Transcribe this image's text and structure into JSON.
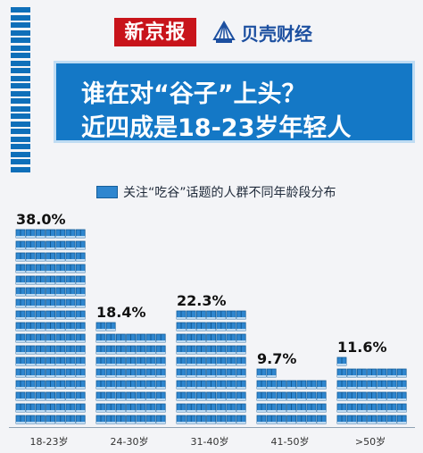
{
  "header": {
    "logo_xjb": "新京报",
    "logo_beike": "贝壳财经"
  },
  "title": {
    "line1": "谁在对“谷子”上头？",
    "line2": "近四成是18-23岁年轻人"
  },
  "legend": {
    "label": "关注“吃谷”话题的人群不同年龄段分布"
  },
  "colors": {
    "accent": "#1478c6",
    "icon_fill": "#2e86cf",
    "icon_stroke": "#155e9a",
    "brand_red": "#c8141b"
  },
  "chart_data": {
    "type": "bar",
    "categories": [
      "18-23岁",
      "24-30岁",
      "31-40岁",
      "41-50岁",
      ">50岁"
    ],
    "values": [
      38.0,
      18.4,
      22.3,
      9.7,
      11.6
    ],
    "value_labels": [
      "38.0%",
      "18.4%",
      "22.3%",
      "9.7%",
      "11.6%"
    ],
    "unit": "%",
    "mark": "stacked book icons"
  }
}
